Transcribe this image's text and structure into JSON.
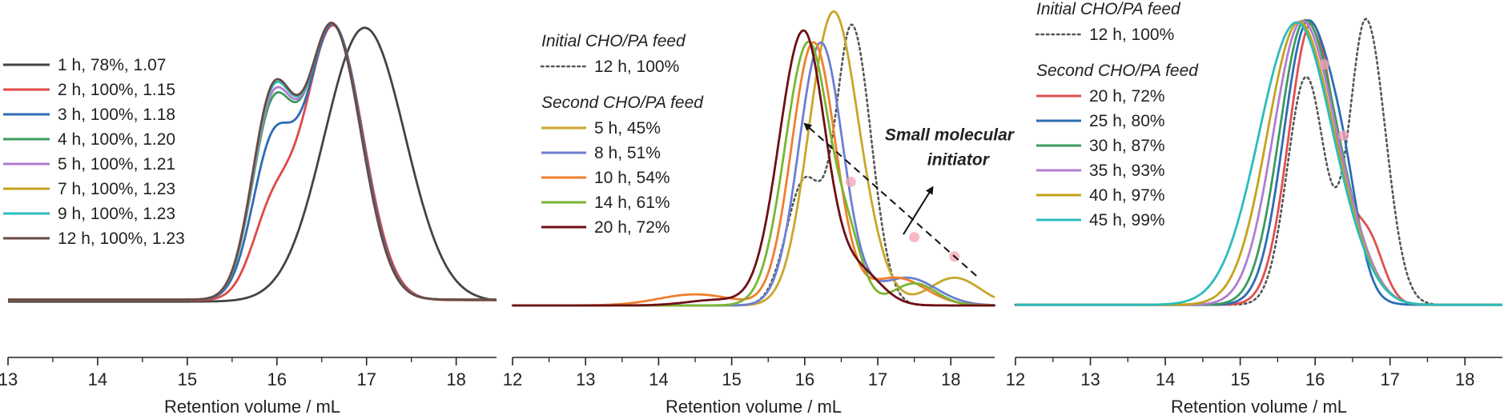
{
  "chart_data": [
    {
      "type": "line",
      "panel": "left",
      "xlabel": "Retention volume / mL",
      "ylabel": "",
      "xlim": [
        13,
        18.45
      ],
      "ylim": [
        0,
        1.06
      ],
      "xticks": [
        13,
        14,
        15,
        16,
        17,
        18
      ],
      "legend_position": "left",
      "legend_titles": [],
      "baseline_level": 0.012,
      "series": [
        {
          "name": "1 h, 78%, 1.07",
          "color": "#444444",
          "baseline": 0.005,
          "peaks": [
            [
              16.98,
              1.0,
              0.45,
              0.45
            ]
          ]
        },
        {
          "name": "2 h, 100%, 1.15",
          "color": "#e04848",
          "baseline": 0.01,
          "peaks": [
            [
              16.63,
              1.0,
              0.32,
              0.33
            ],
            [
              15.95,
              0.3,
              0.23,
              0.23
            ]
          ]
        },
        {
          "name": "3 h, 100%, 1.18",
          "color": "#2d6cb5",
          "baseline": 0.012,
          "peaks": [
            [
              16.63,
              1.0,
              0.3,
              0.32
            ],
            [
              15.95,
              0.54,
              0.23,
              0.23
            ]
          ]
        },
        {
          "name": "4 h, 100%, 1.20",
          "color": "#3c9a5f",
          "baseline": 0.012,
          "peaks": [
            [
              16.62,
              1.0,
              0.29,
              0.32
            ],
            [
              15.95,
              0.67,
              0.23,
              0.23
            ]
          ]
        },
        {
          "name": "5 h, 100%, 1.21",
          "color": "#b07ecf",
          "baseline": 0.012,
          "peaks": [
            [
              16.62,
              1.0,
              0.29,
              0.32
            ],
            [
              15.95,
              0.69,
              0.23,
              0.23
            ]
          ]
        },
        {
          "name": "7 h, 100%, 1.23",
          "color": "#c4a21c",
          "baseline": 0.012,
          "peaks": [
            [
              16.62,
              1.0,
              0.29,
              0.32
            ],
            [
              15.95,
              0.71,
              0.23,
              0.23
            ]
          ]
        },
        {
          "name": "9 h, 100%, 1.23",
          "color": "#2bbcbc",
          "baseline": 0.012,
          "peaks": [
            [
              16.62,
              1.0,
              0.29,
              0.32
            ],
            [
              15.95,
              0.71,
              0.23,
              0.23
            ]
          ]
        },
        {
          "name": "12 h, 100%, 1.23",
          "color": "#6a4a44",
          "baseline": 0.012,
          "peaks": [
            [
              16.62,
              1.0,
              0.29,
              0.32
            ],
            [
              15.95,
              0.72,
              0.23,
              0.23
            ]
          ]
        }
      ],
      "annotations": [],
      "markers": []
    },
    {
      "type": "line",
      "panel": "middle",
      "xlabel": "Retention volume / mL",
      "ylabel": "",
      "xlim": [
        12,
        18.6
      ],
      "ylim": [
        0,
        1.05
      ],
      "xticks": [
        12,
        13,
        14,
        15,
        16,
        17,
        18
      ],
      "legend_position": "top-left",
      "legend_titles": [
        "Initial CHO/PA feed",
        "Second CHO/PA feed"
      ],
      "baseline_level": 0.003,
      "series": [
        {
          "name": "12 h, 100%",
          "color": "#555555",
          "dotted": true,
          "group": 0,
          "baseline": 0.0,
          "peaks": [
            [
              16.65,
              1.0,
              0.22,
              0.26
            ],
            [
              16.0,
              0.45,
              0.25,
              0.25
            ]
          ]
        },
        {
          "name": "5 h, 45%",
          "color": "#c8a62a",
          "group": 1,
          "baseline": 0.0,
          "peaks": [
            [
              16.35,
              0.95,
              0.32,
              0.3
            ],
            [
              16.75,
              0.25,
              0.3,
              0.3
            ],
            [
              18.05,
              0.1,
              0.35,
              0.35
            ]
          ]
        },
        {
          "name": "8 h, 51%",
          "color": "#6b7fd0",
          "group": 1,
          "baseline": 0.0,
          "peaks": [
            [
              16.22,
              0.95,
              0.3,
              0.3
            ],
            [
              17.4,
              0.1,
              0.4,
              0.4
            ]
          ]
        },
        {
          "name": "10 h, 54%",
          "color": "#ef7f2e",
          "group": 1,
          "baseline": 0.0,
          "peaks": [
            [
              16.12,
              0.95,
              0.3,
              0.3
            ],
            [
              17.25,
              0.1,
              0.4,
              0.4
            ],
            [
              14.5,
              0.04,
              0.5,
              0.5
            ]
          ]
        },
        {
          "name": "14 h, 61%",
          "color": "#7ab532",
          "group": 1,
          "baseline": 0.0,
          "peaks": [
            [
              16.05,
              0.95,
              0.32,
              0.28
            ],
            [
              16.6,
              0.2,
              0.2,
              0.2
            ],
            [
              17.5,
              0.08,
              0.3,
              0.3
            ]
          ]
        },
        {
          "name": "20 h, 72%",
          "color": "#6e0f16",
          "group": 1,
          "baseline": 0.0,
          "peaks": [
            [
              15.98,
              0.99,
              0.33,
              0.3
            ],
            [
              16.75,
              0.12,
              0.3,
              0.3
            ],
            [
              14.8,
              0.02,
              0.4,
              0.4
            ]
          ]
        }
      ],
      "annotations": [
        {
          "text": "Small molecular",
          "x": 17.98,
          "y": 0.6
        },
        {
          "text": "initiator",
          "x": 18.1,
          "y": 0.51
        }
      ],
      "markers": [
        [
          16.63,
          0.45
        ],
        [
          17.5,
          0.25
        ],
        [
          18.05,
          0.18
        ]
      ]
    },
    {
      "type": "line",
      "panel": "right",
      "xlabel": "Retention volume / mL",
      "ylabel": "",
      "xlim": [
        12,
        18.5
      ],
      "ylim": [
        0,
        1.02
      ],
      "xticks": [
        12,
        13,
        14,
        15,
        16,
        17,
        18
      ],
      "legend_position": "top-right",
      "legend_titles": [
        "Initial CHO/PA feed",
        "Second CHO/PA feed"
      ],
      "baseline_level": 0.005,
      "series": [
        {
          "name": "12 h, 100%",
          "color": "#555555",
          "dotted": true,
          "group": 0,
          "baseline": 0.0,
          "peaks": [
            [
              16.68,
              1.0,
              0.22,
              0.26
            ],
            [
              15.88,
              0.8,
              0.25,
              0.25
            ]
          ]
        },
        {
          "name": "20 h, 72%",
          "color": "#df5050",
          "group": 1,
          "baseline": 0.0,
          "peaks": [
            [
              15.95,
              0.99,
              0.3,
              0.33
            ],
            [
              16.72,
              0.2,
              0.2,
              0.2
            ]
          ]
        },
        {
          "name": "25 h, 80%",
          "color": "#2d6cb5",
          "group": 1,
          "baseline": 0.0,
          "peaks": [
            [
              15.9,
              0.99,
              0.32,
              0.36
            ],
            [
              16.4,
              0.2,
              0.2,
              0.2
            ]
          ]
        },
        {
          "name": "30 h, 87%",
          "color": "#3c9a5f",
          "group": 1,
          "baseline": 0.0,
          "peaks": [
            [
              15.86,
              0.99,
              0.34,
              0.4
            ],
            [
              16.5,
              0.1,
              0.3,
              0.3
            ]
          ]
        },
        {
          "name": "35 h, 93%",
          "color": "#b07ecf",
          "group": 1,
          "baseline": 0.0,
          "peaks": [
            [
              15.82,
              0.99,
              0.38,
              0.42
            ],
            [
              16.5,
              0.1,
              0.3,
              0.3
            ]
          ]
        },
        {
          "name": "40 h, 97%",
          "color": "#c4a21c",
          "group": 1,
          "baseline": 0.0,
          "peaks": [
            [
              15.78,
              0.99,
              0.42,
              0.44
            ],
            [
              16.5,
              0.08,
              0.3,
              0.3
            ]
          ]
        },
        {
          "name": "45 h, 99%",
          "color": "#2bbcbc",
          "group": 1,
          "baseline": 0.0,
          "peaks": [
            [
              15.75,
              0.99,
              0.5,
              0.46
            ],
            [
              16.5,
              0.06,
              0.3,
              0.3
            ]
          ]
        }
      ],
      "annotations": [],
      "markers": [
        [
          16.12,
          0.85
        ],
        [
          16.38,
          0.6
        ]
      ]
    }
  ]
}
